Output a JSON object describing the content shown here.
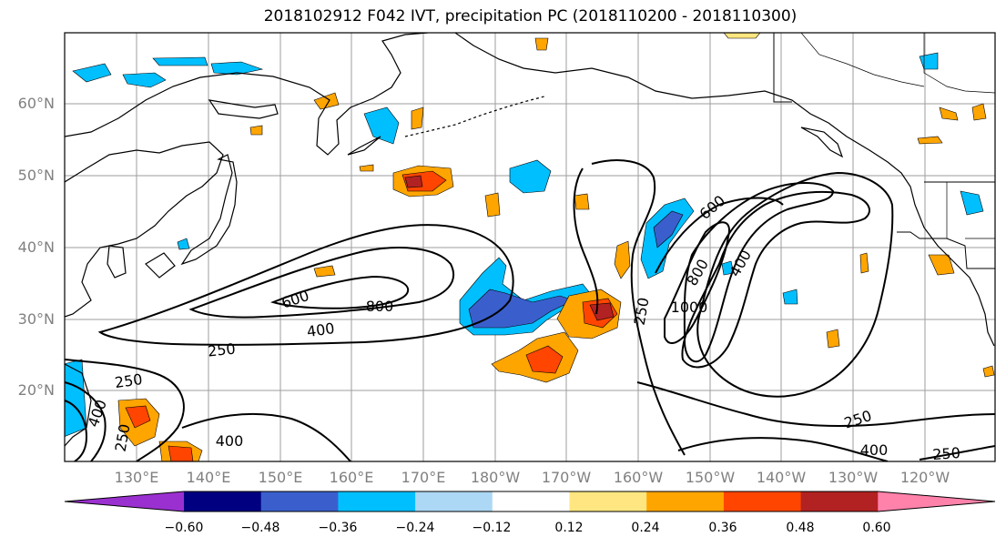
{
  "title": "2018102912 F042 IVT, precipitation PC (2018110200 - 2018110300)",
  "lat_labels": [
    "60°N",
    "50°N",
    "40°N",
    "30°N",
    "20°N"
  ],
  "lon_labels": [
    "130°E",
    "140°E",
    "150°E",
    "160°E",
    "170°E",
    "180°W",
    "170°W",
    "160°W",
    "150°W",
    "140°W",
    "130°W",
    "120°W"
  ],
  "contour_labels": [
    "600",
    "800",
    "400",
    "250",
    "250",
    "400",
    "250",
    "600",
    "800",
    "1000",
    "400",
    "250",
    "250",
    "400",
    "250",
    "400"
  ],
  "colorbar": {
    "ticks": [
      "−0.60",
      "−0.48",
      "−0.36",
      "−0.24",
      "−0.12",
      "0.12",
      "0.24",
      "0.36",
      "0.48",
      "0.60"
    ],
    "colors": [
      "#9b30d0",
      "#000080",
      "#3a5fcd",
      "#00bfff",
      "#add8f5",
      "#ffffff",
      "#ffe680",
      "#ffa500",
      "#ff4500",
      "#b22222",
      "#ff82ab"
    ]
  }
}
